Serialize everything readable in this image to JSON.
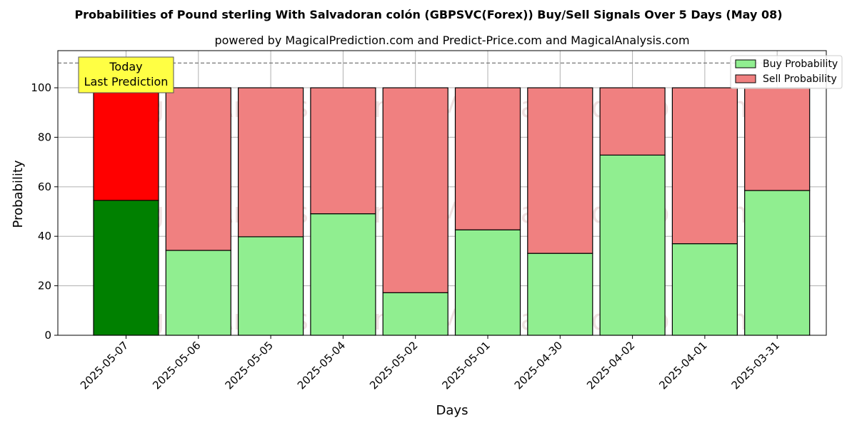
{
  "chart_data": {
    "type": "bar",
    "stacked": true,
    "title": "Probabilities of Pound sterling With Salvadoran colón (GBPSVC(Forex)) Buy/Sell Signals Over 5 Days (May 08)",
    "subtitle": "powered by MagicalPrediction.com and Predict-Price.com and MagicalAnalysis.com",
    "xlabel": "Days",
    "ylabel": "Probability",
    "ylim": [
      0,
      115
    ],
    "yticks": [
      0,
      20,
      40,
      60,
      80,
      100
    ],
    "grid": true,
    "legend_position": "top-right",
    "reference_line": 110,
    "categories": [
      "2025-05-07",
      "2025-05-06",
      "2025-05-05",
      "2025-05-04",
      "2025-05-02",
      "2025-05-01",
      "2025-04-30",
      "2025-04-02",
      "2025-04-01",
      "2025-03-31"
    ],
    "series": [
      {
        "name": "Buy Probability",
        "color": "#90ee90",
        "highlight_color": "#008000",
        "values": [
          54.5,
          34.3,
          39.8,
          49.1,
          17.2,
          42.6,
          33.1,
          72.8,
          37.0,
          58.5
        ]
      },
      {
        "name": "Sell Probability",
        "color": "#f08080",
        "highlight_color": "#ff0000",
        "values": [
          45.5,
          65.7,
          60.2,
          50.9,
          82.8,
          57.4,
          66.9,
          27.2,
          63.0,
          41.5
        ]
      }
    ],
    "annotation": {
      "line1": "Today",
      "line2": "Last Prediction",
      "color": "#ffff44"
    },
    "watermarks": [
      "MagicalAnalysis.com",
      "MagicalPrediction.com"
    ]
  }
}
